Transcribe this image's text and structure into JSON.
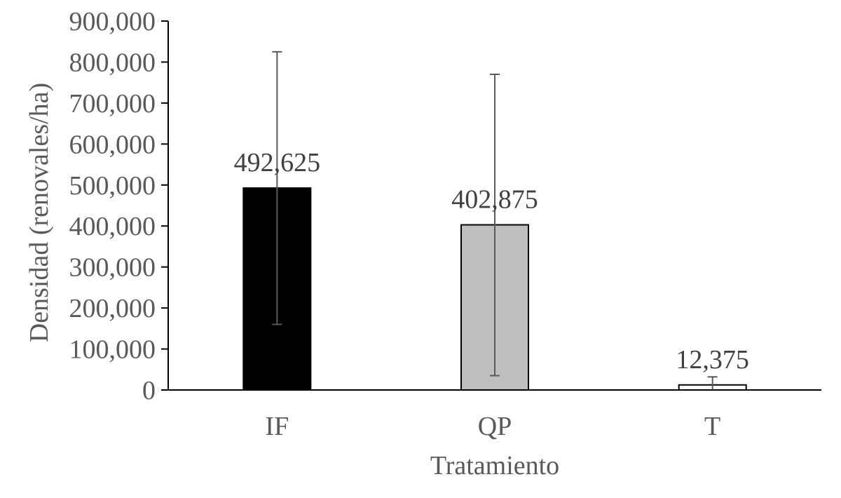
{
  "chart_data": {
    "type": "bar",
    "title": "",
    "xlabel": "Tratamiento",
    "ylabel": "Densidad (renovales/ha)",
    "categories": [
      "IF",
      "QP",
      "T"
    ],
    "values": [
      492625,
      402875,
      12375
    ],
    "value_labels": [
      "492,625",
      "402,875",
      "12,375"
    ],
    "error_bars": [
      {
        "low": 160000,
        "high": 825000
      },
      {
        "low": 35000,
        "high": 770000
      },
      {
        "low": 0,
        "high": 32000
      }
    ],
    "bar_colors": [
      "#000000",
      "#bfbfbf",
      "#ffffff"
    ],
    "ylim": [
      0,
      900000
    ],
    "yticks": [
      0,
      100000,
      200000,
      300000,
      400000,
      500000,
      600000,
      700000,
      800000,
      900000
    ],
    "ytick_labels": [
      "0",
      "100,000",
      "200,000",
      "300,000",
      "400,000",
      "500,000",
      "600,000",
      "700,000",
      "800,000",
      "900,000"
    ],
    "grid": false,
    "legend": "none"
  }
}
